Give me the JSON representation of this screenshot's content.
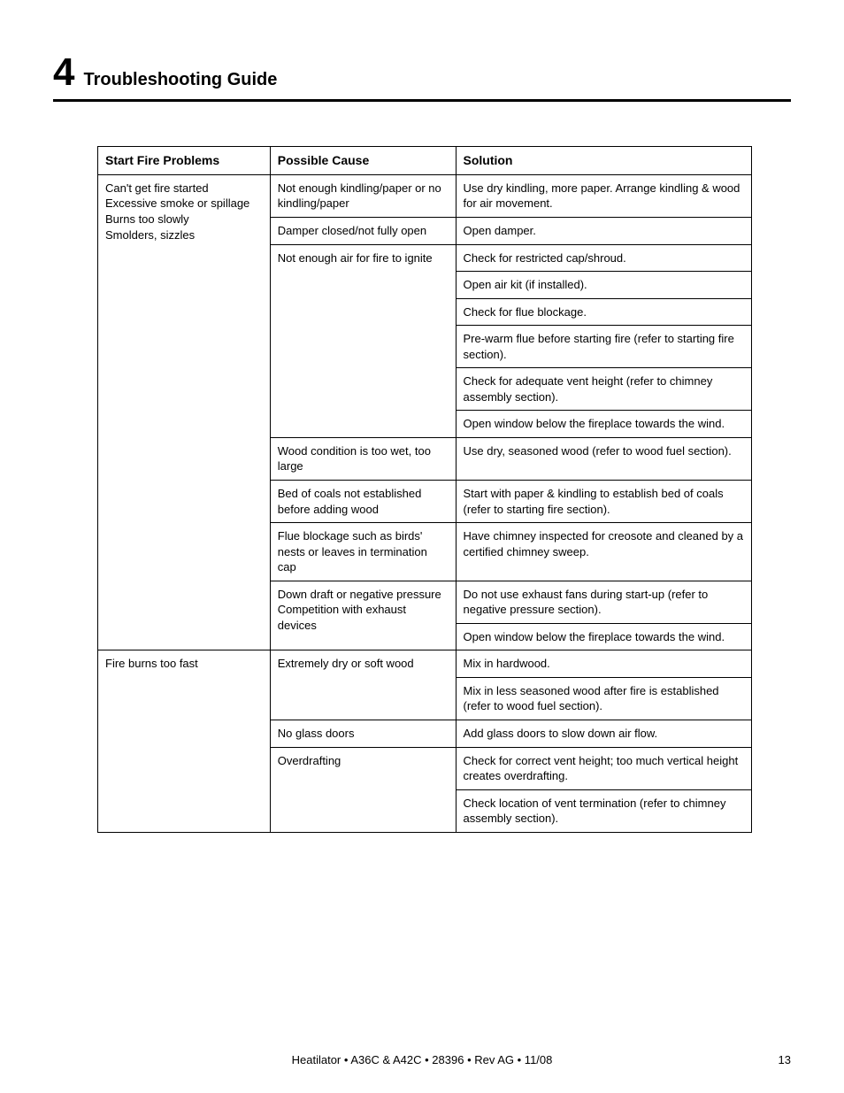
{
  "header": {
    "section_number": "4",
    "title": "Troubleshooting Guide"
  },
  "table": {
    "columns": [
      "Start Fire Problems",
      "Possible Cause",
      "Solution"
    ],
    "problems": [
      {
        "label": "Can't get fire started\nExcessive smoke or spillage\nBurns too slowly\nSmolders, sizzles",
        "causes": [
          {
            "label": "Not enough kindling/paper or no kindling/paper",
            "solutions": [
              "Use dry kindling, more paper. Arrange kindling & wood for air movement."
            ]
          },
          {
            "label": "Damper closed/not fully open",
            "solutions": [
              "Open damper."
            ]
          },
          {
            "label": "Not enough air for fire to ignite",
            "solutions": [
              "Check for restricted cap/shroud.",
              "Open air kit (if installed).",
              "Check for flue blockage.",
              "Pre-warm flue before starting fire (refer to starting fire section).",
              "Check for adequate vent height (refer to chimney assembly section).",
              "Open window below the fireplace towards the wind."
            ]
          },
          {
            "label": "Wood condition is too wet, too large",
            "solutions": [
              "Use dry, seasoned wood (refer to wood fuel section)."
            ]
          },
          {
            "label": "Bed of coals not established before adding wood",
            "solutions": [
              "Start with paper & kindling to establish bed of coals (refer to starting fire section)."
            ]
          },
          {
            "label": "Flue blockage such as birds' nests or leaves in termination cap",
            "solutions": [
              "Have chimney inspected for creosote and cleaned by a certified chimney sweep."
            ]
          },
          {
            "label": "Down draft or negative pressure Competition with exhaust devices",
            "solutions": [
              "Do not use exhaust fans during start-up (refer to negative pressure section).",
              "Open window below the fireplace towards the wind."
            ]
          }
        ]
      },
      {
        "label": "Fire burns too fast",
        "causes": [
          {
            "label": "Extremely dry or soft wood",
            "solutions": [
              "Mix in hardwood.",
              "Mix in less seasoned wood after fire is established (refer to wood fuel section)."
            ]
          },
          {
            "label": "No glass doors",
            "solutions": [
              "Add glass doors to slow down air flow."
            ]
          },
          {
            "label": "Overdrafting",
            "solutions": [
              "Check for correct vent height; too much vertical height creates overdrafting.",
              "Check location of vent termination (refer to chimney assembly section)."
            ]
          }
        ]
      }
    ]
  },
  "footer": {
    "text": "Heatilator  •  A36C & A42C  •  28396  •  Rev AG   •  11/08",
    "page_number": "13"
  }
}
